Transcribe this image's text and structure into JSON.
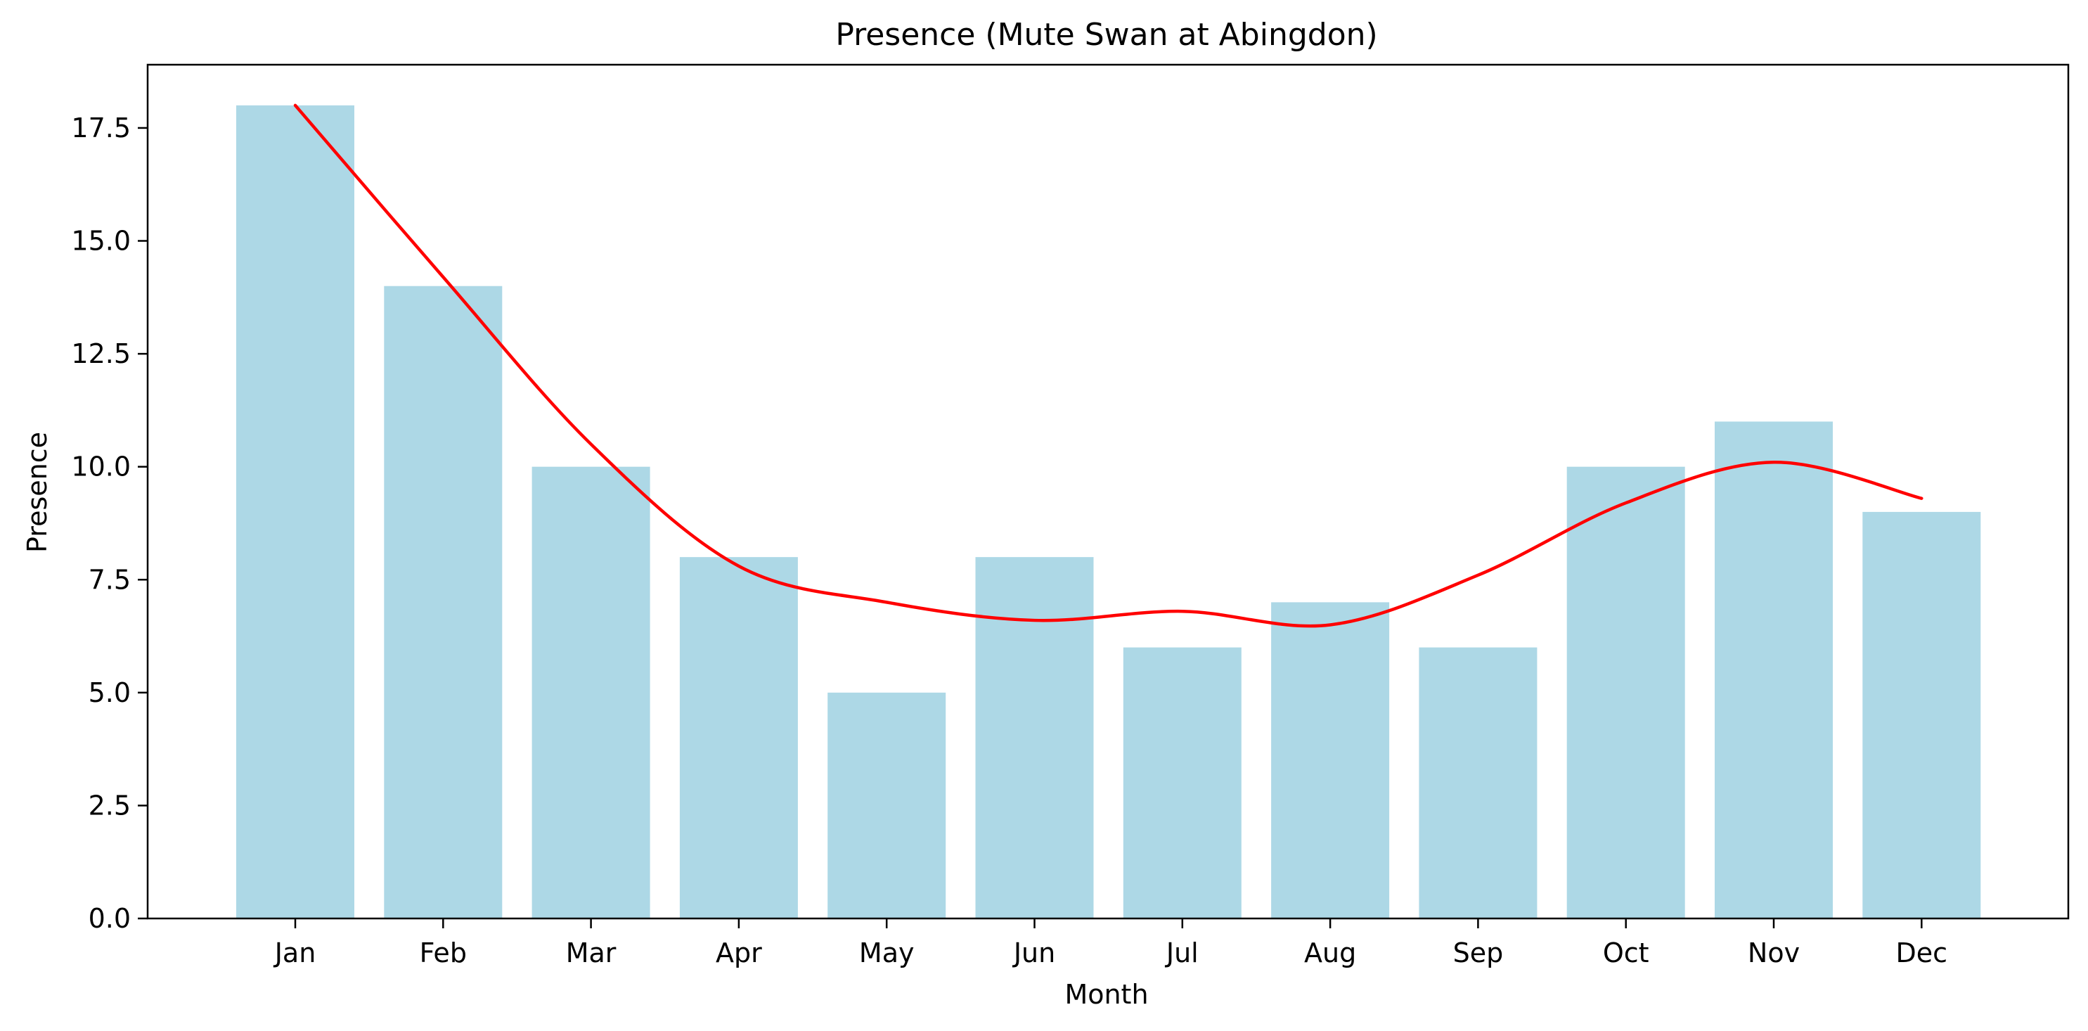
{
  "chart_data": {
    "type": "bar",
    "title": "Presence (Mute Swan at Abingdon)",
    "xlabel": "Month",
    "ylabel": "Presence",
    "categories": [
      "Jan",
      "Feb",
      "Mar",
      "Apr",
      "May",
      "Jun",
      "Jul",
      "Aug",
      "Sep",
      "Oct",
      "Nov",
      "Dec"
    ],
    "values": [
      18,
      14,
      10,
      8,
      5,
      8,
      6,
      7,
      6,
      10,
      11,
      9
    ],
    "trend_line": {
      "type": "line",
      "style": "smooth",
      "values": [
        18.0,
        14.2,
        10.5,
        7.8,
        7.0,
        6.6,
        6.8,
        6.5,
        7.6,
        9.2,
        10.1,
        9.3
      ]
    },
    "ylim": [
      0,
      18.9
    ],
    "yticks": [
      0.0,
      2.5,
      5.0,
      7.5,
      10.0,
      12.5,
      15.0,
      17.5
    ],
    "ytick_labels": [
      "0.0",
      "2.5",
      "5.0",
      "7.5",
      "10.0",
      "12.5",
      "15.0",
      "17.5"
    ],
    "grid": false,
    "colors": {
      "bar": "#add8e6",
      "line": "#ff0000",
      "axis": "#000000"
    }
  }
}
